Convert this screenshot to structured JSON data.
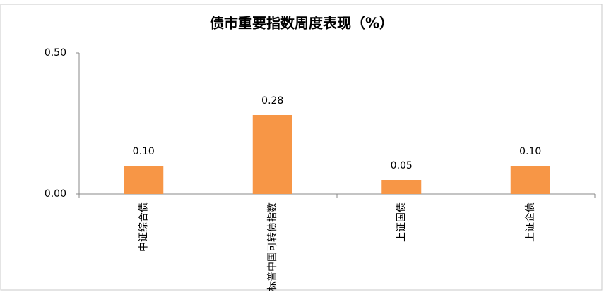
{
  "chart_data": {
    "type": "bar",
    "title": "债市重要指数周度表现（%）",
    "categories": [
      "中证综合债",
      "标普中国可转债指数",
      "上证国债",
      "上证企债"
    ],
    "values": [
      0.1,
      0.28,
      0.05,
      0.1
    ],
    "value_labels": [
      "0.10",
      "0.28",
      "0.05",
      "0.10"
    ],
    "color": "#f79646",
    "ylim": [
      0,
      0.5
    ],
    "yticks": [
      {
        "value": 0,
        "label": "0.00"
      },
      {
        "value": 0.5,
        "label": "0.50"
      }
    ],
    "grid": false
  }
}
